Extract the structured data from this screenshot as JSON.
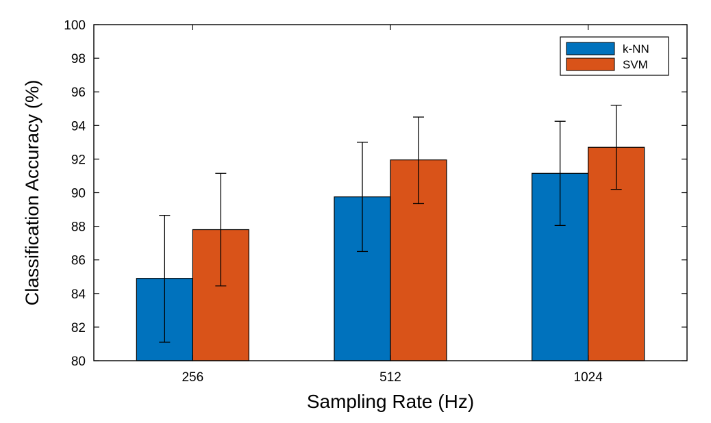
{
  "chart_data": {
    "type": "bar",
    "title": "",
    "xlabel": "Sampling Rate (Hz)",
    "ylabel": "Classification Accuracy (%)",
    "categories": [
      "256",
      "512",
      "1024"
    ],
    "ylim": [
      80,
      100
    ],
    "yticks": [
      80,
      82,
      84,
      86,
      88,
      90,
      92,
      94,
      96,
      98,
      100
    ],
    "grid": false,
    "legend_position": "top-right",
    "series": [
      {
        "name": "k-NN",
        "color": "#0072BD",
        "values": [
          84.9,
          89.75,
          91.15
        ],
        "error_low": [
          81.1,
          86.5,
          88.05
        ],
        "error_high": [
          88.65,
          93.0,
          94.25
        ]
      },
      {
        "name": "SVM",
        "color": "#D95319",
        "values": [
          87.8,
          91.95,
          92.7
        ],
        "error_low": [
          84.45,
          89.35,
          90.2
        ],
        "error_high": [
          91.15,
          94.5,
          95.2
        ]
      }
    ]
  }
}
